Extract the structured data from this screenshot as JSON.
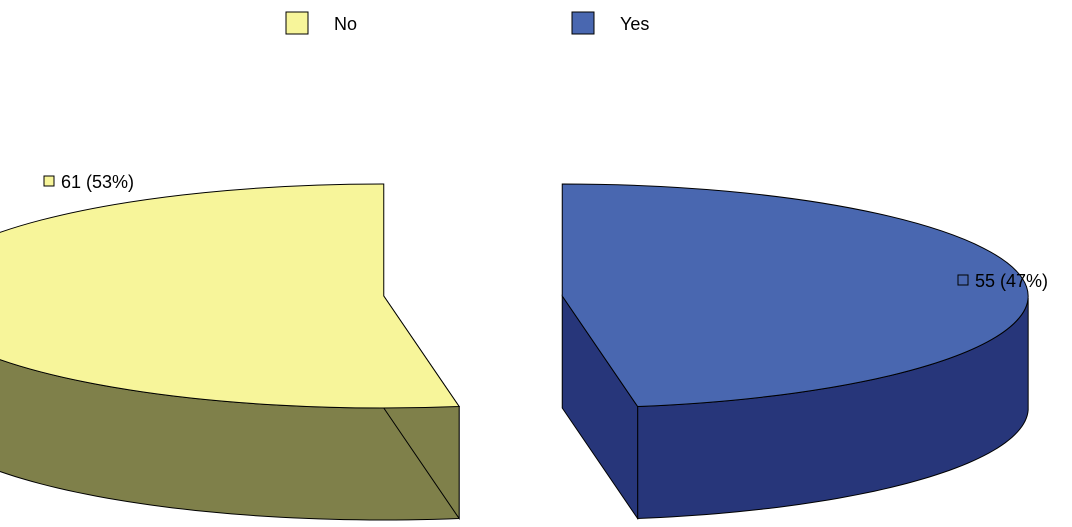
{
  "chart_data": {
    "type": "pie",
    "title": "",
    "legend_position": "top",
    "slices": [
      {
        "label": "No",
        "value": 61,
        "percent": 53,
        "data_label": "61 (53%)",
        "color": "#F7F59A",
        "side_color": "#7F804A"
      },
      {
        "label": "Yes",
        "value": 55,
        "percent": 47,
        "data_label": "55 (47%)",
        "color": "#4967B0",
        "side_color": "#27367A"
      }
    ],
    "exploded": true,
    "three_d": true
  }
}
